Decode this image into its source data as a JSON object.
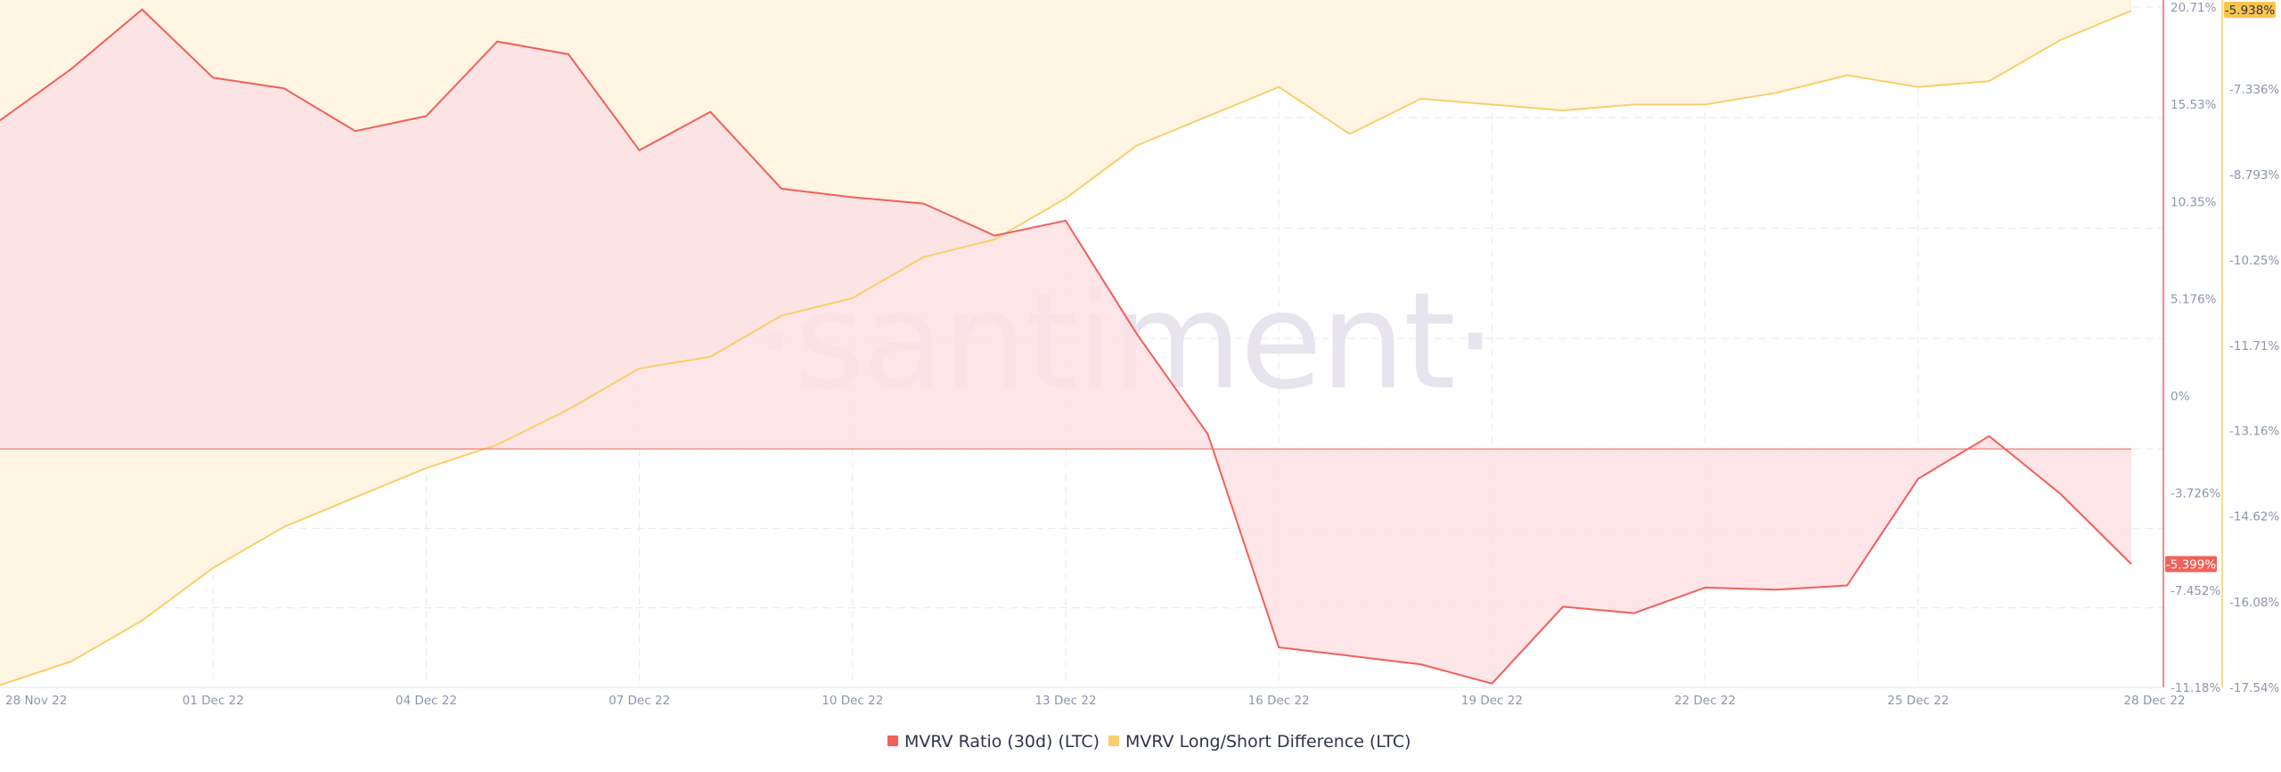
{
  "watermark": "·santiment·",
  "chart_data": {
    "type": "area",
    "x_labels": [
      "28 Nov 22",
      "01 Dec 22",
      "04 Dec 22",
      "07 Dec 22",
      "10 Dec 22",
      "13 Dec 22",
      "16 Dec 22",
      "19 Dec 22",
      "22 Dec 22",
      "25 Dec 22",
      "28 Dec 22"
    ],
    "x_range": [
      "2022-11-28",
      "2022-12-28"
    ],
    "y_axes": {
      "left_red": {
        "unit": "%",
        "range": [
          -11.18,
          20.71
        ],
        "ticks": [
          "20.71%",
          "15.53%",
          "10.35%",
          "5.176%",
          "0%",
          "-3.726%",
          "-7.452%",
          "-11.18%"
        ]
      },
      "right_yellow": {
        "unit": "%",
        "range": [
          -17.54,
          -5.938
        ],
        "ticks": [
          "-7.336%",
          "-8.793%",
          "-10.25%",
          "-11.71%",
          "-13.16%",
          "-14.62%",
          "-16.08%",
          "-17.54%"
        ]
      }
    },
    "grid": true,
    "legend_position": "bottom-center",
    "series": [
      {
        "name": "MVRV Ratio (30d) (LTC)",
        "color": "#f2605a",
        "fill": "#fde1e4",
        "axis": "left_red",
        "last_value_label": "-5.399%",
        "x": [
          "2022-11-28",
          "2022-11-29",
          "2022-11-30",
          "2022-12-01",
          "2022-12-02",
          "2022-12-03",
          "2022-12-04",
          "2022-12-05",
          "2022-12-06",
          "2022-12-07",
          "2022-12-08",
          "2022-12-09",
          "2022-12-10",
          "2022-12-11",
          "2022-12-12",
          "2022-12-13",
          "2022-12-14",
          "2022-12-15",
          "2022-12-16",
          "2022-12-17",
          "2022-12-18",
          "2022-12-19",
          "2022-12-20",
          "2022-12-21",
          "2022-12-22",
          "2022-12-23",
          "2022-12-24",
          "2022-12-25",
          "2022-12-26",
          "2022-12-27",
          "2022-12-28"
        ],
        "values": [
          15.4,
          17.8,
          20.6,
          17.4,
          16.9,
          14.9,
          15.6,
          19.1,
          18.5,
          14.0,
          15.8,
          12.2,
          11.8,
          11.5,
          10.0,
          10.7,
          5.4,
          0.7,
          -9.3,
          -9.7,
          -10.1,
          -11.0,
          -7.4,
          -7.7,
          -6.5,
          -6.6,
          -6.4,
          -1.4,
          0.6,
          -2.1,
          -5.4
        ]
      },
      {
        "name": "MVRV Long/Short Difference (LTC)",
        "color": "#f9cf6c",
        "fill": "#fff5e2",
        "axis": "right_yellow",
        "last_value_label": "-5.938%",
        "x": [
          "2022-11-28",
          "2022-11-29",
          "2022-11-30",
          "2022-12-01",
          "2022-12-02",
          "2022-12-03",
          "2022-12-04",
          "2022-12-05",
          "2022-12-06",
          "2022-12-07",
          "2022-12-08",
          "2022-12-09",
          "2022-12-10",
          "2022-12-11",
          "2022-12-12",
          "2022-12-13",
          "2022-12-14",
          "2022-12-15",
          "2022-12-16",
          "2022-12-17",
          "2022-12-18",
          "2022-12-19",
          "2022-12-20",
          "2022-12-21",
          "2022-12-22",
          "2022-12-23",
          "2022-12-24",
          "2022-12-25",
          "2022-12-26",
          "2022-12-27",
          "2022-12-28"
        ],
        "values": [
          -17.5,
          -17.1,
          -16.4,
          -15.5,
          -14.8,
          -14.3,
          -13.8,
          -13.4,
          -12.8,
          -12.1,
          -11.9,
          -11.2,
          -10.9,
          -10.2,
          -9.9,
          -9.2,
          -8.3,
          -7.8,
          -7.3,
          -8.1,
          -7.5,
          -7.6,
          -7.7,
          -7.6,
          -7.6,
          -7.4,
          -7.1,
          -7.3,
          -7.2,
          -6.5,
          -6.0
        ]
      }
    ]
  }
}
